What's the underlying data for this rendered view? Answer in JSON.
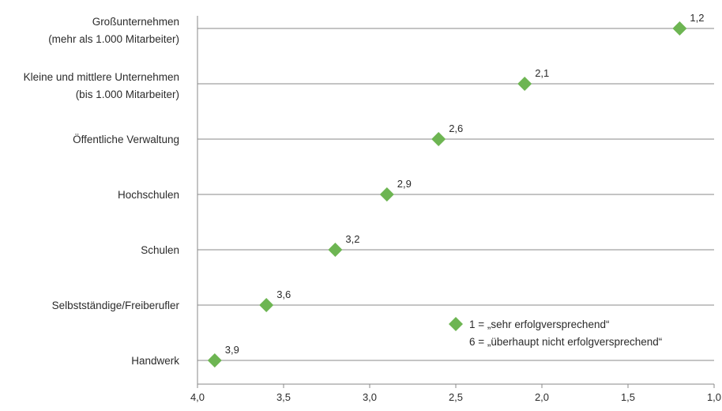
{
  "chart_data": {
    "type": "scatter",
    "title": "",
    "xlabel": "",
    "ylabel": "",
    "x_axis_reversed": true,
    "xlim": [
      4.0,
      1.0
    ],
    "x_ticks": [
      "4,0",
      "3,5",
      "3,0",
      "2,5",
      "2,0",
      "1,5",
      "1,0"
    ],
    "x_tick_values": [
      4.0,
      3.5,
      3.0,
      2.5,
      2.0,
      1.5,
      1.0
    ],
    "marker": "diamond",
    "marker_color": "#6db552",
    "categories": [
      {
        "lines": [
          "Großunternehmen",
          "(mehr als 1.000 Mitarbeiter)"
        ],
        "value": 1.2,
        "label": "1,2"
      },
      {
        "lines": [
          "Kleine und mittlere Unternehmen",
          "(bis 1.000 Mitarbeiter)"
        ],
        "value": 2.1,
        "label": "2,1"
      },
      {
        "lines": [
          "Öffentliche Verwaltung"
        ],
        "value": 2.6,
        "label": "2,6"
      },
      {
        "lines": [
          "Hochschulen"
        ],
        "value": 2.9,
        "label": "2,9"
      },
      {
        "lines": [
          "Schulen"
        ],
        "value": 3.2,
        "label": "3,2"
      },
      {
        "lines": [
          "Selbstständige/Freiberufler"
        ],
        "value": 3.6,
        "label": "3,6"
      },
      {
        "lines": [
          "Handwerk"
        ],
        "value": 3.9,
        "label": "3,9"
      }
    ],
    "legend": {
      "placement": "bottom-right",
      "lines": [
        "1 = „sehr erfolgversprechend“",
        "6 = „überhaupt nicht erfolgversprechend“"
      ]
    },
    "grid": false
  }
}
